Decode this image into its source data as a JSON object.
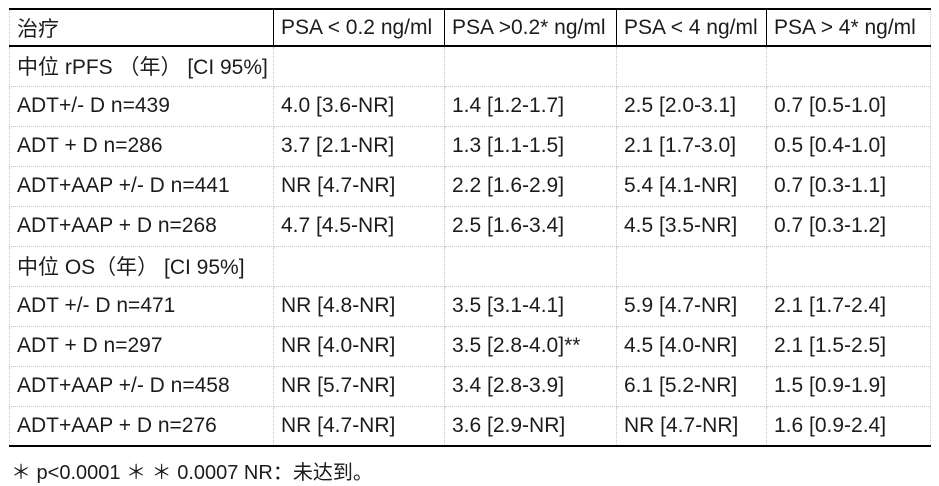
{
  "table": {
    "header": [
      "治疗",
      "PSA < 0.2 ng/ml",
      "PSA >0.2* ng/ml",
      "PSA < 4 ng/ml",
      "PSA > 4* ng/ml"
    ],
    "rows": [
      {
        "cells": [
          "中位 rPFS （年） [CI 95%]",
          "",
          "",
          "",
          ""
        ]
      },
      {
        "cells": [
          "ADT+/- D n=439",
          "4.0 [3.6-NR]",
          "1.4 [1.2-1.7]",
          "2.5 [2.0-3.1]",
          "0.7 [0.5-1.0]"
        ]
      },
      {
        "cells": [
          "ADT + D n=286",
          "3.7 [2.1-NR]",
          "1.3 [1.1-1.5]",
          "2.1 [1.7-3.0]",
          "0.5 [0.4-1.0]"
        ]
      },
      {
        "cells": [
          "ADT+AAP +/- D n=441",
          "NR [4.7-NR]",
          "2.2 [1.6-2.9]",
          "5.4 [4.1-NR]",
          "0.7 [0.3-1.1]"
        ]
      },
      {
        "cells": [
          "ADT+AAP + D n=268",
          "4.7 [4.5-NR]",
          "2.5 [1.6-3.4]",
          "4.5 [3.5-NR]",
          "0.7 [0.3-1.2]"
        ]
      },
      {
        "cells": [
          "中位 OS（年） [CI 95%]",
          "",
          "",
          "",
          ""
        ]
      },
      {
        "cells": [
          "ADT +/- D n=471",
          "NR [4.8-NR]",
          "3.5 [3.1-4.1]",
          "5.9 [4.7-NR]",
          "2.1 [1.7-2.4]"
        ]
      },
      {
        "cells": [
          "ADT + D n=297",
          "NR [4.0-NR]",
          "3.5 [2.8-4.0]**",
          "4.5 [4.0-NR]",
          "2.1 [1.5-2.5]"
        ]
      },
      {
        "cells": [
          "ADT+AAP +/- D n=458",
          "NR [5.7-NR]",
          "3.4 [2.8-3.9]",
          "6.1 [5.2-NR]",
          "1.5 [0.9-1.9]"
        ]
      },
      {
        "cells": [
          "ADT+AAP + D n=276",
          "NR [4.7-NR]",
          "3.6 [2.9-NR]",
          "NR [4.7-NR]",
          "1.6 [0.9-2.4]"
        ]
      }
    ]
  },
  "footnote": "＊ p<0.0001 ＊ ＊ 0.0007 NR：未达到。"
}
